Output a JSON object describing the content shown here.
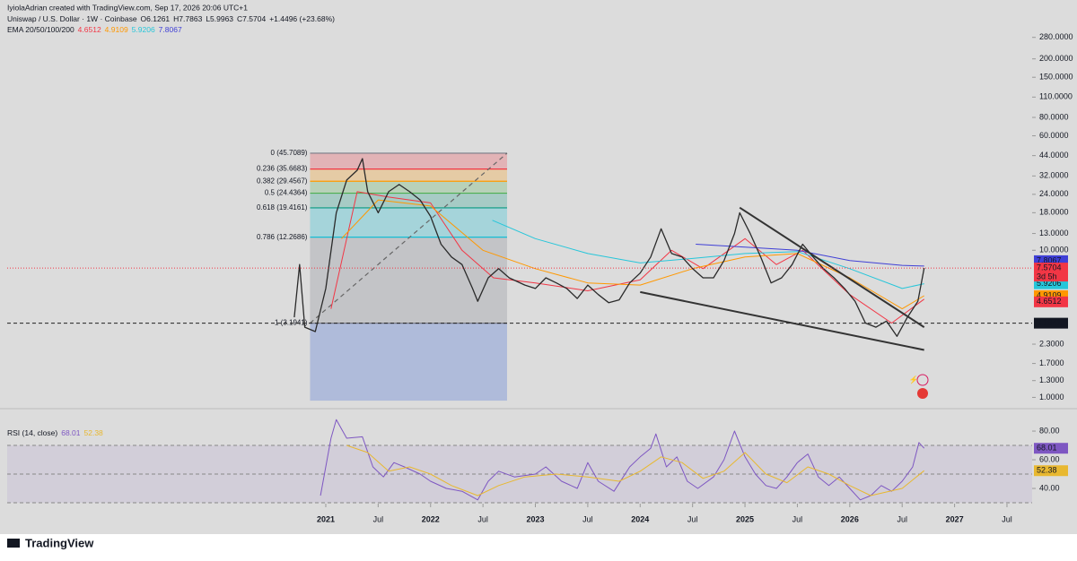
{
  "chart_data": {
    "type": "line",
    "log_y": true,
    "header": {
      "credit": "IyiolaAdrian created with TradingView.com, Sep 17, 2026 20:06 UTC+1",
      "symbol": "Uniswap / U.S. Dollar · 1W · Coinbase",
      "ohlc": [
        "O6.1261",
        "H7.7863",
        "L5.9963",
        "C7.5704",
        "+1.4496 (+23.68%)"
      ],
      "ema_title": "EMA 20/50/100/200",
      "countdown": "3d 5h"
    },
    "xlim": [
      2017.96,
      2027.74
    ],
    "xticks": [
      {
        "value": 2021,
        "label": "2021"
      },
      {
        "value": 2021.5,
        "label": "Jul"
      },
      {
        "value": 2022,
        "label": "2022"
      },
      {
        "value": 2022.5,
        "label": "Jul"
      },
      {
        "value": 2023,
        "label": "2023"
      },
      {
        "value": 2023.5,
        "label": "Jul"
      },
      {
        "value": 2024,
        "label": "2024"
      },
      {
        "value": 2024.5,
        "label": "Jul"
      },
      {
        "value": 2025,
        "label": "2025"
      },
      {
        "value": 2025.5,
        "label": "Jul"
      },
      {
        "value": 2026,
        "label": "2026"
      },
      {
        "value": 2026.5,
        "label": "Jul"
      },
      {
        "value": 2027,
        "label": "2027"
      },
      {
        "value": 2027.5,
        "label": "Jul"
      }
    ],
    "ylim": [
      0.85,
      330
    ],
    "yticks": [
      {
        "value": 280,
        "label": "280.0000"
      },
      {
        "value": 200,
        "label": "200.0000"
      },
      {
        "value": 150,
        "label": "150.0000"
      },
      {
        "value": 110,
        "label": "110.0000"
      },
      {
        "value": 80,
        "label": "80.0000"
      },
      {
        "value": 60,
        "label": "60.0000"
      },
      {
        "value": 44,
        "label": "44.0000"
      },
      {
        "value": 32,
        "label": "32.0000"
      },
      {
        "value": 24,
        "label": "24.0000"
      },
      {
        "value": 18,
        "label": "18.0000"
      },
      {
        "value": 13,
        "label": "13.0000"
      },
      {
        "value": 10,
        "label": "10.0000"
      },
      {
        "value": 2.3,
        "label": "2.3000"
      },
      {
        "value": 1.7,
        "label": "1.7000"
      },
      {
        "value": 1.3,
        "label": "1.3000"
      },
      {
        "value": 1,
        "label": "1.0000"
      }
    ],
    "price": {
      "color": "#2a2a2a",
      "label_color": "#f23645",
      "x": [
        2020.7,
        2020.75,
        2020.8,
        2020.9,
        2021.0,
        2021.1,
        2021.2,
        2021.3,
        2021.35,
        2021.4,
        2021.5,
        2021.6,
        2021.7,
        2021.8,
        2021.9,
        2022.0,
        2022.1,
        2022.2,
        2022.3,
        2022.4,
        2022.45,
        2022.55,
        2022.65,
        2022.75,
        2022.9,
        2023.0,
        2023.1,
        2023.2,
        2023.3,
        2023.4,
        2023.5,
        2023.6,
        2023.7,
        2023.8,
        2023.9,
        2024.0,
        2024.1,
        2024.2,
        2024.3,
        2024.4,
        2024.5,
        2024.6,
        2024.7,
        2024.8,
        2024.9,
        2024.95,
        2025.05,
        2025.15,
        2025.25,
        2025.35,
        2025.45,
        2025.55,
        2025.65,
        2025.75,
        2025.85,
        2025.95,
        2026.05,
        2026.15,
        2026.25,
        2026.35,
        2026.45,
        2026.55,
        2026.65,
        2026.71
      ],
      "values": [
        3.5,
        8,
        3.0,
        2.8,
        5.5,
        18,
        30,
        35,
        42,
        25,
        18,
        25,
        28,
        25,
        22,
        17,
        11,
        9,
        8,
        5.5,
        4.5,
        6.5,
        7.5,
        6.5,
        5.8,
        5.5,
        6.5,
        6.0,
        5.5,
        4.7,
        5.8,
        5.0,
        4.4,
        4.6,
        6.0,
        7.0,
        9.0,
        14,
        9.5,
        9.0,
        7.5,
        6.5,
        6.5,
        8.5,
        13,
        18,
        13,
        9.0,
        6.0,
        6.5,
        8.0,
        11,
        9.0,
        7.5,
        6.5,
        5.5,
        4.5,
        3.2,
        3.0,
        3.3,
        2.6,
        3.5,
        4.5,
        7.5704
      ]
    },
    "series": [
      {
        "color": "#f23645",
        "x": [
          2021.05,
          2021.3,
          2021.6,
          2022.0,
          2022.3,
          2022.6,
          2023.0,
          2023.5,
          2024.0,
          2024.3,
          2024.6,
          2025.0,
          2025.3,
          2025.55,
          2026.0,
          2026.4,
          2026.71
        ],
        "values": [
          4,
          25,
          23,
          21,
          10,
          6.5,
          6.0,
          5.3,
          6.3,
          10,
          7.5,
          12,
          8.0,
          10,
          5.0,
          3.2,
          4.6512
        ]
      },
      {
        "color": "#ff9800",
        "x": [
          2021.15,
          2021.5,
          2022.0,
          2022.5,
          2023.0,
          2023.5,
          2024.0,
          2024.5,
          2025.0,
          2025.5,
          2026.0,
          2026.5,
          2026.71
        ],
        "values": [
          12,
          22,
          20,
          10,
          7.5,
          6.0,
          5.8,
          7.5,
          9.0,
          9.5,
          6.5,
          4.0,
          4.9109
        ]
      },
      {
        "color": "#26c6da",
        "x": [
          2022.59,
          2023.0,
          2023.5,
          2024.0,
          2024.5,
          2025.0,
          2025.5,
          2026.0,
          2026.5,
          2026.71
        ],
        "values": [
          16,
          12,
          9.5,
          8.2,
          8.8,
          9.5,
          9.8,
          7.5,
          5.5,
          5.9206
        ]
      },
      {
        "color": "#3f3fd6",
        "x": [
          2024.53,
          2025.0,
          2025.5,
          2026.0,
          2026.5,
          2026.71
        ],
        "values": [
          11,
          10.5,
          10,
          8.5,
          7.9,
          7.8067
        ]
      }
    ],
    "fib": {
      "x": [
        2020.85,
        2022.73
      ],
      "extension_bottom": 0.95,
      "extension_color": "#5b7fd8",
      "levels": [
        {
          "price": 45.7089,
          "label": "0 (45.7089)",
          "color": "#787b86"
        },
        {
          "price": 35.6683,
          "label": "0.236 (35.6683)",
          "color": "#f23645"
        },
        {
          "price": 29.4567,
          "label": "0.382 (29.4567)",
          "color": "#ff9800"
        },
        {
          "price": 24.4364,
          "label": "0.5 (24.4364)",
          "color": "#4caf50"
        },
        {
          "price": 19.4161,
          "label": "0.618 (19.4161)",
          "color": "#089981"
        },
        {
          "price": 12.2686,
          "label": "0.786 (12.2686)",
          "color": "#00bcd4"
        },
        {
          "price": 3.1941,
          "label": "1 (3.1941)",
          "color": "#787b86"
        }
      ]
    },
    "trendlines": [
      {
        "x": [
          2024.95,
          2026.71
        ],
        "values": [
          19.5,
          3.0
        ]
      },
      {
        "x": [
          2024.0,
          2026.71
        ],
        "values": [
          5.2,
          2.1
        ]
      }
    ],
    "hline": 3.1941,
    "rsi": {
      "title": "RSI (14, close)",
      "ylim": [
        29.4,
        94.4
      ],
      "yticks": [
        {
          "value": 80,
          "label": "80.00"
        },
        {
          "value": 60,
          "label": "60.00"
        },
        {
          "value": 40,
          "label": "40.00"
        }
      ],
      "bands": [
        30,
        50,
        70
      ],
      "series": [
        {
          "color": "#7e57c2",
          "x": [
            2020.95,
            2021.05,
            2021.1,
            2021.2,
            2021.35,
            2021.45,
            2021.55,
            2021.65,
            2021.75,
            2021.9,
            2022.0,
            2022.15,
            2022.3,
            2022.45,
            2022.55,
            2022.65,
            2022.8,
            2023.0,
            2023.1,
            2023.25,
            2023.4,
            2023.5,
            2023.6,
            2023.75,
            2023.9,
            2024.0,
            2024.1,
            2024.15,
            2024.25,
            2024.35,
            2024.45,
            2024.55,
            2024.7,
            2024.8,
            2024.9,
            2025.0,
            2025.1,
            2025.2,
            2025.3,
            2025.4,
            2025.5,
            2025.6,
            2025.7,
            2025.8,
            2025.9,
            2026.0,
            2026.1,
            2026.2,
            2026.3,
            2026.4,
            2026.5,
            2026.6,
            2026.66,
            2026.71
          ],
          "values": [
            35,
            75,
            88,
            75,
            76,
            55,
            48,
            58,
            55,
            50,
            45,
            40,
            38,
            32,
            45,
            52,
            48,
            50,
            55,
            45,
            40,
            58,
            45,
            38,
            55,
            62,
            68,
            78,
            55,
            62,
            45,
            40,
            48,
            60,
            80,
            62,
            50,
            42,
            40,
            48,
            58,
            64,
            48,
            42,
            48,
            40,
            32,
            35,
            42,
            38,
            45,
            55,
            72,
            68.01
          ]
        },
        {
          "color": "#e8b830",
          "x": [
            2021.2,
            2021.4,
            2021.6,
            2021.8,
            2022.0,
            2022.2,
            2022.45,
            2022.65,
            2022.9,
            2023.2,
            2023.5,
            2023.8,
            2024.0,
            2024.2,
            2024.4,
            2024.6,
            2024.8,
            2025.0,
            2025.2,
            2025.4,
            2025.6,
            2025.8,
            2026.0,
            2026.2,
            2026.5,
            2026.71
          ],
          "values": [
            70,
            65,
            52,
            55,
            50,
            42,
            35,
            42,
            48,
            50,
            48,
            45,
            52,
            62,
            58,
            47,
            52,
            65,
            50,
            44,
            55,
            50,
            42,
            35,
            40,
            52.38
          ]
        }
      ]
    },
    "brand": "TradingView"
  }
}
